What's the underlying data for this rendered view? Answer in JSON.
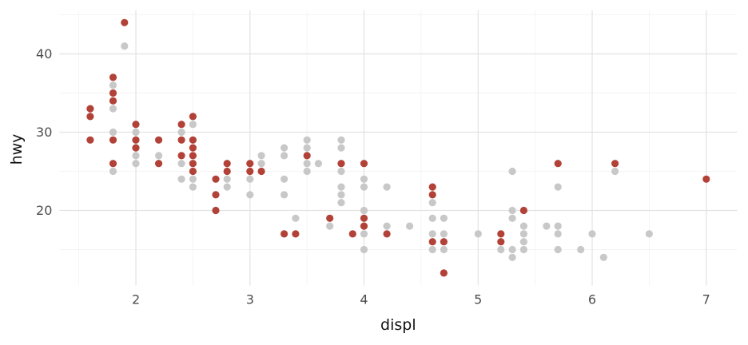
{
  "figure": {
    "background": "#ffffff",
    "x_axis_title": "displ",
    "y_axis_title": "hwy",
    "x_tick_labels": [
      "2",
      "3",
      "4",
      "5",
      "6",
      "7"
    ],
    "y_tick_labels": [
      "20",
      "30",
      "40"
    ]
  },
  "chart_data": {
    "type": "scatter",
    "title": "",
    "xlabel": "displ",
    "ylabel": "hwy",
    "xlim": [
      1.33,
      7.27
    ],
    "ylim": [
      10.4,
      45.6
    ],
    "x_major_ticks": [
      2,
      3,
      4,
      5,
      6,
      7
    ],
    "y_major_ticks": [
      20,
      30,
      40
    ],
    "x_minor_ticks": [
      1.5,
      2.5,
      3.5,
      4.5,
      5.5,
      6.5
    ],
    "y_minor_ticks": [
      15,
      25,
      35,
      45
    ],
    "grid": "major+minor",
    "legend": "none",
    "point_radius": 4.6,
    "colors": {
      "highlight": "#B24238",
      "base": "#C8C8C8",
      "grid_major": "#E2E2E2",
      "grid_minor": "#F1F1F1",
      "tick_text": "#4d4d4d",
      "axis_title_text": "#111111"
    },
    "series": [
      {
        "name": "base-gray",
        "color": "#C8C8C8",
        "points": [
          [
            1.8,
            36
          ],
          [
            1.8,
            33
          ],
          [
            1.8,
            30
          ],
          [
            1.8,
            25
          ],
          [
            1.9,
            41
          ],
          [
            2.0,
            30
          ],
          [
            2.0,
            27
          ],
          [
            2.0,
            26
          ],
          [
            2.2,
            27
          ],
          [
            2.4,
            30
          ],
          [
            2.4,
            26
          ],
          [
            2.4,
            24
          ],
          [
            2.5,
            31
          ],
          [
            2.5,
            24
          ],
          [
            2.5,
            23
          ],
          [
            2.8,
            24
          ],
          [
            2.8,
            23
          ],
          [
            3.0,
            24
          ],
          [
            3.0,
            22
          ],
          [
            3.1,
            27
          ],
          [
            3.1,
            26
          ],
          [
            3.3,
            28
          ],
          [
            3.3,
            27
          ],
          [
            3.3,
            24
          ],
          [
            3.3,
            22
          ],
          [
            3.4,
            19
          ],
          [
            3.5,
            29
          ],
          [
            3.5,
            28
          ],
          [
            3.5,
            26
          ],
          [
            3.5,
            25
          ],
          [
            3.6,
            26
          ],
          [
            3.7,
            18
          ],
          [
            3.8,
            29
          ],
          [
            3.8,
            28
          ],
          [
            3.8,
            25
          ],
          [
            3.8,
            23
          ],
          [
            3.8,
            22
          ],
          [
            3.8,
            21
          ],
          [
            4.0,
            24
          ],
          [
            4.0,
            23
          ],
          [
            4.0,
            20
          ],
          [
            4.0,
            17
          ],
          [
            4.0,
            15
          ],
          [
            4.2,
            23
          ],
          [
            4.2,
            18
          ],
          [
            4.4,
            18
          ],
          [
            4.6,
            21
          ],
          [
            4.6,
            19
          ],
          [
            4.6,
            17
          ],
          [
            4.6,
            15
          ],
          [
            4.7,
            19
          ],
          [
            4.7,
            17
          ],
          [
            4.7,
            15
          ],
          [
            5.0,
            17
          ],
          [
            5.2,
            15
          ],
          [
            5.3,
            25
          ],
          [
            5.3,
            20
          ],
          [
            5.3,
            19
          ],
          [
            5.3,
            15
          ],
          [
            5.3,
            14
          ],
          [
            5.4,
            18
          ],
          [
            5.4,
            17
          ],
          [
            5.4,
            16
          ],
          [
            5.4,
            15
          ],
          [
            5.6,
            18
          ],
          [
            5.7,
            23
          ],
          [
            5.7,
            18
          ],
          [
            5.7,
            17
          ],
          [
            5.7,
            15
          ],
          [
            5.9,
            15
          ],
          [
            6.0,
            17
          ],
          [
            6.1,
            14
          ],
          [
            6.2,
            25
          ],
          [
            6.5,
            17
          ]
        ]
      },
      {
        "name": "highlight-red",
        "color": "#B24238",
        "points": [
          [
            1.6,
            33
          ],
          [
            1.6,
            32
          ],
          [
            1.6,
            29
          ],
          [
            1.8,
            37
          ],
          [
            1.8,
            35
          ],
          [
            1.8,
            34
          ],
          [
            1.8,
            29
          ],
          [
            1.8,
            26
          ],
          [
            1.9,
            44
          ],
          [
            2.0,
            31
          ],
          [
            2.0,
            29
          ],
          [
            2.0,
            28
          ],
          [
            2.2,
            29
          ],
          [
            2.2,
            26
          ],
          [
            2.4,
            31
          ],
          [
            2.4,
            29
          ],
          [
            2.4,
            27
          ],
          [
            2.5,
            32
          ],
          [
            2.5,
            29
          ],
          [
            2.5,
            28
          ],
          [
            2.5,
            27
          ],
          [
            2.5,
            26
          ],
          [
            2.5,
            25
          ],
          [
            2.7,
            24
          ],
          [
            2.7,
            22
          ],
          [
            2.7,
            20
          ],
          [
            2.8,
            26
          ],
          [
            2.8,
            25
          ],
          [
            3.0,
            26
          ],
          [
            3.0,
            25
          ],
          [
            3.1,
            25
          ],
          [
            3.3,
            17
          ],
          [
            3.4,
            17
          ],
          [
            3.5,
            27
          ],
          [
            3.7,
            19
          ],
          [
            3.8,
            26
          ],
          [
            3.9,
            17
          ],
          [
            4.0,
            26
          ],
          [
            4.0,
            19
          ],
          [
            4.0,
            18
          ],
          [
            4.2,
            17
          ],
          [
            4.6,
            23
          ],
          [
            4.6,
            22
          ],
          [
            4.6,
            16
          ],
          [
            4.7,
            16
          ],
          [
            4.7,
            12
          ],
          [
            5.2,
            17
          ],
          [
            5.2,
            16
          ],
          [
            5.4,
            20
          ],
          [
            5.7,
            26
          ],
          [
            6.2,
            26
          ],
          [
            7.0,
            24
          ]
        ]
      }
    ]
  }
}
